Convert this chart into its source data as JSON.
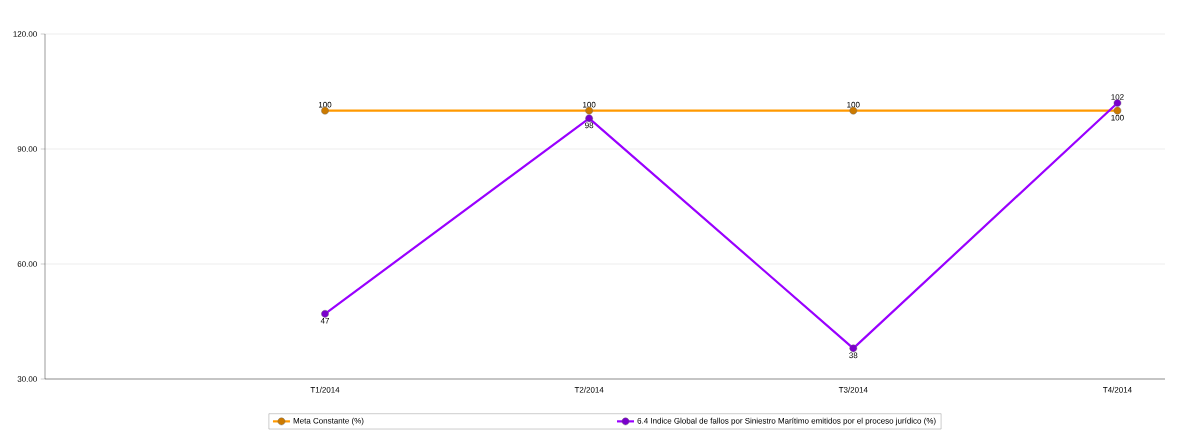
{
  "chart_data": {
    "type": "line",
    "categories": [
      "T1/2014",
      "T2/2014",
      "T3/2014",
      "T4/2014"
    ],
    "series": [
      {
        "name": "Meta Constante (%)",
        "color": "#ff9900",
        "values": [
          100,
          100,
          100,
          100
        ]
      },
      {
        "name": "6.4 Indice Global de fallos por Siniestro Marítimo emitidos por el proceso jurídico (%)",
        "color": "#9900ff",
        "values": [
          47,
          98,
          38,
          102
        ]
      }
    ],
    "ylim": [
      30,
      120
    ],
    "yticks": [
      {
        "value": 30,
        "label": "30.00"
      },
      {
        "value": 60,
        "label": "60.00"
      },
      {
        "value": 90,
        "label": "90.00"
      },
      {
        "value": 120,
        "label": "120.00"
      }
    ],
    "grid": "y",
    "legend": "bottom",
    "marker": "circle",
    "line_style": "solid",
    "data_labels": true
  }
}
